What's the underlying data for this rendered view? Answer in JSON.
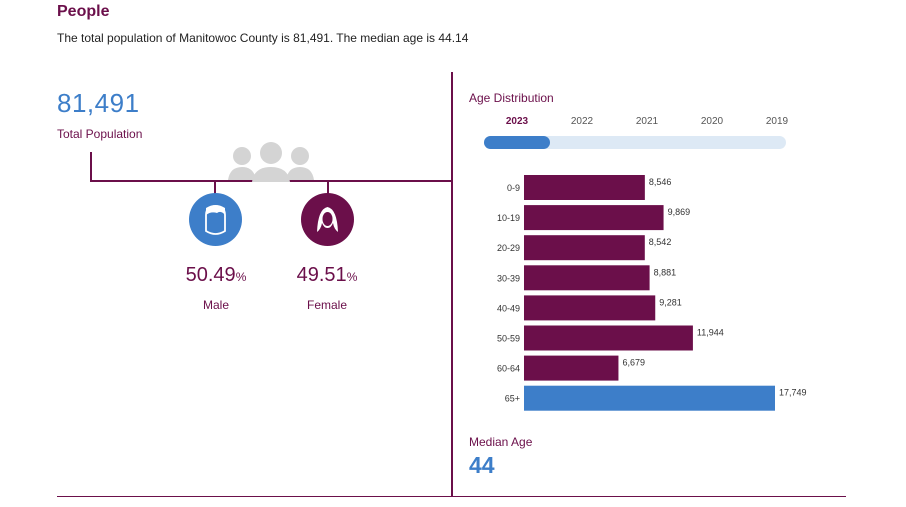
{
  "section": {
    "title": "People",
    "summary": "The total population of Manitowoc County is 81,491. The median age is 44.14"
  },
  "population": {
    "total": "81,491",
    "total_label": "Total Population"
  },
  "gender": {
    "male": {
      "pct": "50.49",
      "symbol": "%",
      "label": "Male",
      "color": "#3d7ec9"
    },
    "female": {
      "pct": "49.51",
      "symbol": "%",
      "label": "Female",
      "color": "#6b0f4a"
    }
  },
  "age_distribution": {
    "title": "Age Distribution",
    "years": [
      "2023",
      "2022",
      "2021",
      "2020",
      "2019"
    ],
    "selected_year": "2023",
    "slider_progress": 0.22
  },
  "median": {
    "label": "Median Age",
    "value": "44"
  },
  "colors": {
    "primary": "#6b0f4a",
    "accent": "#3d7ec9",
    "icon_gray": "#d4d4d4",
    "track": "#dde9f5"
  },
  "chart_data": {
    "type": "bar",
    "orientation": "horizontal",
    "title": "Age Distribution",
    "categories": [
      "0-9",
      "10-19",
      "20-29",
      "30-39",
      "40-49",
      "50-59",
      "60-64",
      "65+"
    ],
    "values": [
      8546,
      9869,
      8542,
      8881,
      9281,
      11944,
      6679,
      17749
    ],
    "value_labels": [
      "8,546",
      "9,869",
      "8,542",
      "8,881",
      "9,281",
      "11,944",
      "6,679",
      "17,749"
    ],
    "highlight_index": 7,
    "bar_color": "#6b0f4a",
    "highlight_color": "#3d7ec9",
    "xlim": [
      0,
      17749
    ],
    "grid": false,
    "legend": "none"
  }
}
